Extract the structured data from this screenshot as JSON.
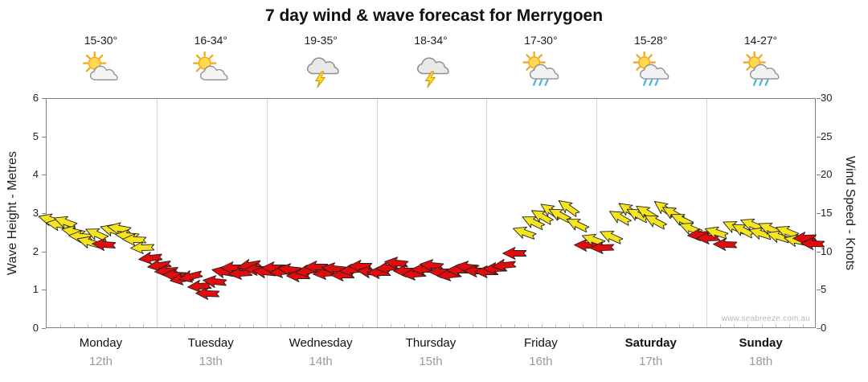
{
  "title": "7 day wind & wave forecast for Merrygoen",
  "watermark": "www.seabreeze.com.au",
  "axes": {
    "left_label": "Wave Height - Metres",
    "right_label": "Wind Speed - Knots",
    "left_ticks": [
      0,
      1,
      2,
      3,
      4,
      5,
      6
    ],
    "right_ticks": [
      0,
      5,
      10,
      15,
      20,
      25,
      30
    ]
  },
  "days": [
    {
      "name": "Monday",
      "date": "12th",
      "temp": "15-30°",
      "icon": "sun-cloud",
      "bold": false
    },
    {
      "name": "Tuesday",
      "date": "13th",
      "temp": "16-34°",
      "icon": "sun-cloud",
      "bold": false
    },
    {
      "name": "Wednesday",
      "date": "14th",
      "temp": "19-35°",
      "icon": "storm",
      "bold": false
    },
    {
      "name": "Thursday",
      "date": "15th",
      "temp": "18-34°",
      "icon": "storm",
      "bold": false
    },
    {
      "name": "Friday",
      "date": "16th",
      "temp": "17-30°",
      "icon": "sun-cloud-rain",
      "bold": false
    },
    {
      "name": "Saturday",
      "date": "17th",
      "temp": "15-28°",
      "icon": "sun-cloud-rain",
      "bold": true
    },
    {
      "name": "Sunday",
      "date": "18th",
      "temp": "14-27°",
      "icon": "sun-cloud-rain",
      "bold": true
    }
  ],
  "colors": {
    "arrow_yellow": "#f6e41c",
    "arrow_red": "#e20c0c",
    "arrow_outline": "#222222",
    "grid": "#d6d6d6",
    "bottom_tick": "#8fd2e6"
  },
  "chart_data": {
    "type": "wind-arrows",
    "title": "7 day wind & wave forecast for Merrygoen",
    "x_axis": "time in days (0 = start of Monday 12th, 7 = end of Sunday 18th)",
    "ylabel_left": "Wave Height - Metres",
    "ylabel_right": "Wind Speed - Knots",
    "ylim_left_metres": [
      0,
      6
    ],
    "ylim_right_knots": [
      0,
      30
    ],
    "grid": "vertical day separators only",
    "legend": "none",
    "arrow_point_format": [
      "day_x",
      "wind_speed_knots",
      "color(y=yellow,r=red)",
      "rotation_deg(0=east,cw)"
    ],
    "arrows": [
      [
        0.03,
        14.3,
        "y",
        196
      ],
      [
        0.1,
        13.6,
        "y",
        188
      ],
      [
        0.17,
        13.9,
        "y",
        200
      ],
      [
        0.24,
        12.7,
        "y",
        192
      ],
      [
        0.31,
        12.1,
        "y",
        184
      ],
      [
        0.38,
        11.3,
        "y",
        196
      ],
      [
        0.45,
        12.4,
        "y",
        204
      ],
      [
        0.52,
        11.0,
        "r",
        184
      ],
      [
        0.59,
        12.9,
        "y",
        196
      ],
      [
        0.66,
        13.1,
        "y",
        190
      ],
      [
        0.73,
        12.2,
        "y",
        186
      ],
      [
        0.8,
        11.6,
        "y",
        182
      ],
      [
        0.87,
        10.6,
        "y",
        178
      ],
      [
        0.94,
        9.2,
        "r",
        174
      ],
      [
        1.02,
        8.3,
        "r",
        172
      ],
      [
        1.09,
        7.6,
        "r",
        176
      ],
      [
        1.16,
        7.0,
        "r",
        182
      ],
      [
        1.23,
        6.5,
        "r",
        172
      ],
      [
        1.31,
        6.8,
        "r",
        166
      ],
      [
        1.39,
        5.6,
        "r",
        176
      ],
      [
        1.46,
        4.6,
        "r",
        182
      ],
      [
        1.53,
        6.2,
        "r",
        186
      ],
      [
        1.61,
        7.4,
        "r",
        190
      ],
      [
        1.69,
        8.0,
        "r",
        180
      ],
      [
        1.76,
        7.2,
        "r",
        176
      ],
      [
        1.84,
        8.3,
        "r",
        170
      ],
      [
        1.91,
        7.8,
        "r",
        180
      ],
      [
        1.98,
        7.5,
        "r",
        186
      ],
      [
        2.06,
        8.0,
        "r",
        180
      ],
      [
        2.13,
        7.4,
        "r",
        174
      ],
      [
        2.21,
        7.8,
        "r",
        186
      ],
      [
        2.29,
        6.9,
        "r",
        180
      ],
      [
        2.37,
        7.6,
        "r",
        170
      ],
      [
        2.45,
        8.1,
        "r",
        180
      ],
      [
        2.53,
        7.2,
        "r",
        176
      ],
      [
        2.61,
        7.9,
        "r",
        186
      ],
      [
        2.69,
        7.0,
        "r",
        180
      ],
      [
        2.77,
        7.7,
        "r",
        174
      ],
      [
        2.85,
        8.2,
        "r",
        180
      ],
      [
        2.93,
        7.5,
        "r",
        186
      ],
      [
        3.02,
        7.3,
        "r",
        180
      ],
      [
        3.1,
        8.0,
        "r",
        174
      ],
      [
        3.18,
        8.6,
        "r",
        186
      ],
      [
        3.26,
        7.6,
        "r",
        180
      ],
      [
        3.34,
        7.1,
        "r",
        176
      ],
      [
        3.42,
        7.8,
        "r",
        180
      ],
      [
        3.5,
        8.3,
        "r",
        186
      ],
      [
        3.58,
        7.4,
        "r",
        180
      ],
      [
        3.66,
        7.0,
        "r",
        174
      ],
      [
        3.74,
        7.7,
        "r",
        180
      ],
      [
        3.82,
        8.1,
        "r",
        186
      ],
      [
        3.9,
        7.6,
        "r",
        180
      ],
      [
        4.0,
        7.5,
        "r",
        180
      ],
      [
        4.08,
        7.9,
        "r",
        178
      ],
      [
        4.16,
        8.3,
        "r",
        174
      ],
      [
        4.25,
        9.9,
        "r",
        180
      ],
      [
        4.34,
        12.6,
        "y",
        200
      ],
      [
        4.42,
        13.9,
        "y",
        206
      ],
      [
        4.5,
        14.7,
        "y",
        210
      ],
      [
        4.58,
        15.4,
        "y",
        214
      ],
      [
        4.66,
        14.9,
        "y",
        208
      ],
      [
        4.74,
        15.8,
        "y",
        216
      ],
      [
        4.82,
        13.6,
        "y",
        206
      ],
      [
        4.9,
        10.9,
        "r",
        182
      ],
      [
        4.97,
        11.6,
        "y",
        200
      ],
      [
        5.05,
        10.6,
        "r",
        178
      ],
      [
        5.13,
        12.1,
        "y",
        204
      ],
      [
        5.21,
        14.6,
        "y",
        210
      ],
      [
        5.29,
        15.5,
        "y",
        214
      ],
      [
        5.37,
        14.9,
        "y",
        208
      ],
      [
        5.45,
        15.2,
        "y",
        212
      ],
      [
        5.53,
        14.1,
        "y",
        208
      ],
      [
        5.61,
        15.7,
        "y",
        216
      ],
      [
        5.69,
        15.1,
        "y",
        210
      ],
      [
        5.77,
        14.3,
        "y",
        206
      ],
      [
        5.85,
        13.1,
        "y",
        202
      ],
      [
        5.93,
        12.3,
        "r",
        176
      ],
      [
        6.01,
        11.9,
        "r",
        178
      ],
      [
        6.09,
        12.6,
        "y",
        198
      ],
      [
        6.17,
        11.0,
        "r",
        182
      ],
      [
        6.25,
        13.3,
        "y",
        204
      ],
      [
        6.33,
        12.9,
        "y",
        208
      ],
      [
        6.41,
        13.6,
        "y",
        202
      ],
      [
        6.49,
        12.5,
        "y",
        198
      ],
      [
        6.57,
        13.1,
        "y",
        204
      ],
      [
        6.65,
        12.1,
        "y",
        198
      ],
      [
        6.73,
        12.7,
        "y",
        202
      ],
      [
        6.81,
        11.5,
        "y",
        192
      ],
      [
        6.89,
        11.9,
        "r",
        178
      ],
      [
        6.96,
        11.1,
        "r",
        182
      ]
    ]
  }
}
